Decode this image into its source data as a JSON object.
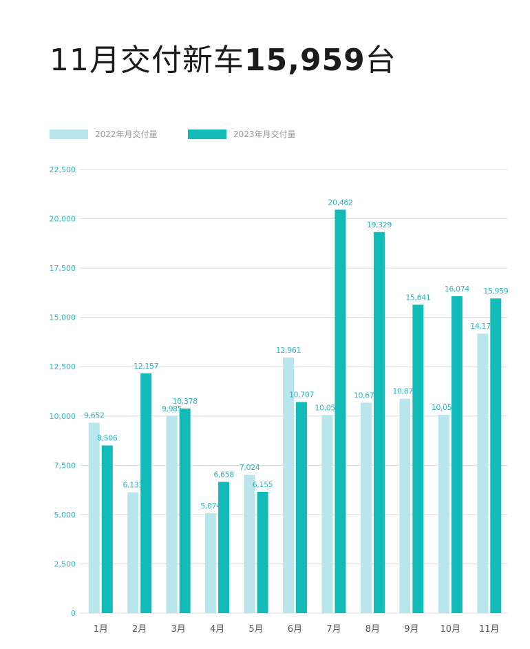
{
  "header": {
    "title_prefix": "11月交付新车",
    "title_number": "15,959",
    "title_suffix": "台"
  },
  "colors": {
    "series_2022": "#b9e6ec",
    "series_2023": "#12bab8",
    "axis_text": "#2bb6bf",
    "grid": "#dcdcdc"
  },
  "chart_data": {
    "type": "bar",
    "title": "11月交付新车15,959台",
    "categories": [
      "1月",
      "2月",
      "3月",
      "4月",
      "5月",
      "6月",
      "7月",
      "8月",
      "9月",
      "10月",
      "11月"
    ],
    "series": [
      {
        "name": "2022年月交付量",
        "values": [
          9652,
          6131,
          9985,
          5074,
          7024,
          12961,
          10052,
          10677,
          10878,
          10059,
          14178
        ],
        "labels": [
          "9,652",
          "6,131",
          "9,985",
          "5,074",
          "7,024",
          "12,961",
          "10,052",
          "10,677",
          "10,878",
          "10,059",
          "14,178"
        ]
      },
      {
        "name": "2023年月交付量",
        "values": [
          8506,
          12157,
          10378,
          6658,
          6155,
          10707,
          20462,
          19329,
          15641,
          16074,
          15959
        ],
        "labels": [
          "8,506",
          "12,157",
          "10,378",
          "6,658",
          "6,155",
          "10,707",
          "20,462",
          "19,329",
          "15,641",
          "16,074",
          "15,959"
        ]
      }
    ],
    "yticks": [
      "0",
      "2,500",
      "5,000",
      "7,500",
      "10,000",
      "12,500",
      "15,000",
      "17,500",
      "20,000",
      "22,500"
    ],
    "ylim": [
      0,
      22500
    ],
    "grid": true,
    "legend": "top-left"
  }
}
